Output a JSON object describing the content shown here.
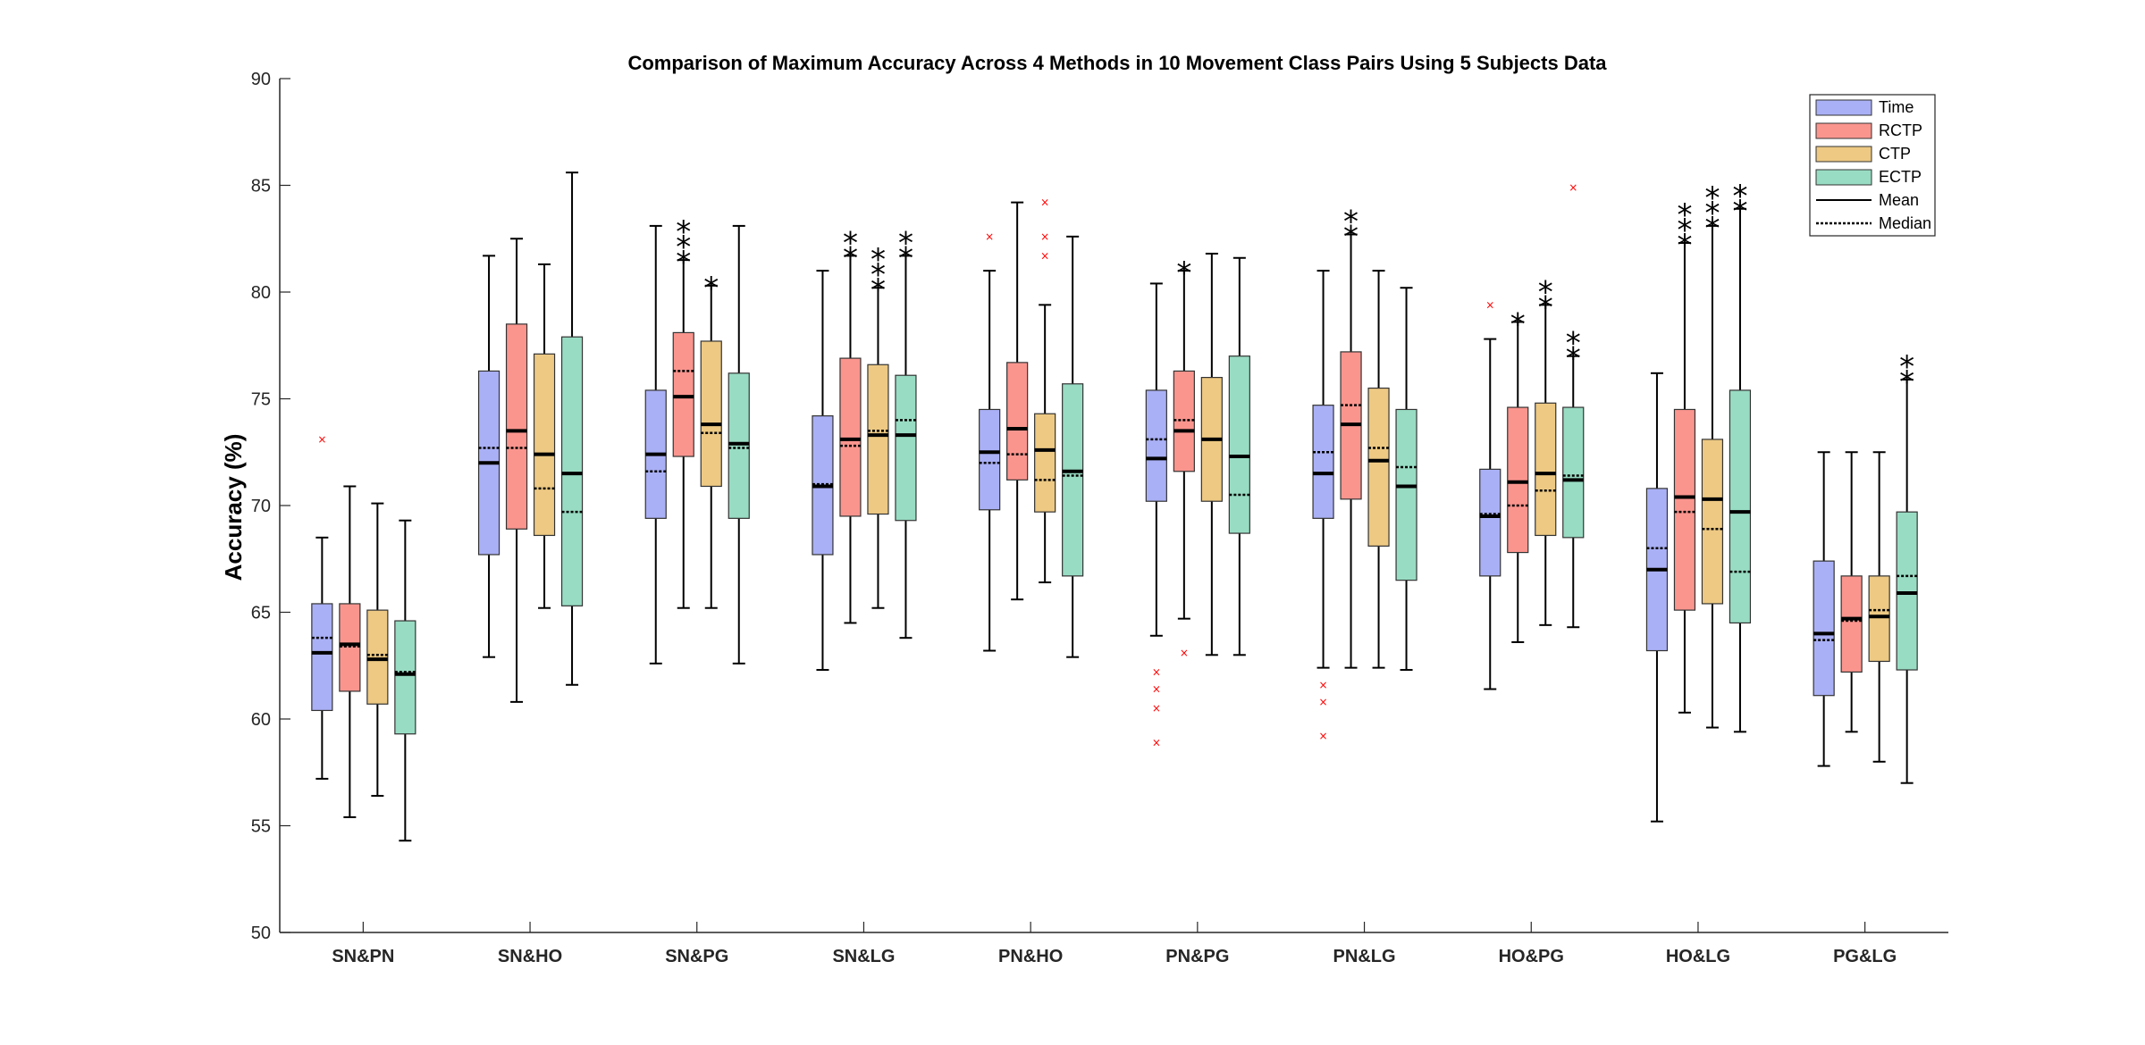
{
  "chart_data": {
    "type": "box",
    "title": "Comparison of Maximum Accuracy Across 4 Methods in 10 Movement Class Pairs Using 5 Subjects Data",
    "xlabel": "",
    "ylabel": "Accuracy (%)",
    "ylim": [
      50,
      90
    ],
    "yticks": [
      50,
      55,
      60,
      65,
      70,
      75,
      80,
      85,
      90
    ],
    "categories": [
      "SN&PN",
      "SN&HO",
      "SN&PG",
      "SN&LG",
      "PN&HO",
      "PN&PG",
      "PN&LG",
      "HO&PG",
      "HO&LG",
      "PG&LG"
    ],
    "legend": {
      "position": "top-right",
      "entries": [
        "Time",
        "RCTP",
        "CTP",
        "ECTP",
        "Mean",
        "Median"
      ]
    },
    "series": [
      {
        "name": "Time",
        "color": "#aab0f5",
        "boxes": [
          {
            "wlo": 57.2,
            "q1": 60.4,
            "median": 63.8,
            "mean": 63.1,
            "q3": 65.4,
            "whi": 68.5,
            "outliers": [
              73.1
            ],
            "stars": ""
          },
          {
            "wlo": 62.9,
            "q1": 67.7,
            "median": 72.7,
            "mean": 72.0,
            "q3": 76.3,
            "whi": 81.7,
            "outliers": [],
            "stars": ""
          },
          {
            "wlo": 62.6,
            "q1": 69.4,
            "median": 71.6,
            "mean": 72.4,
            "q3": 75.4,
            "whi": 83.1,
            "outliers": [],
            "stars": ""
          },
          {
            "wlo": 62.3,
            "q1": 67.7,
            "median": 71.0,
            "mean": 70.9,
            "q3": 74.2,
            "whi": 81.0,
            "outliers": [],
            "stars": ""
          },
          {
            "wlo": 63.2,
            "q1": 69.8,
            "median": 72.0,
            "mean": 72.5,
            "q3": 74.5,
            "whi": 81.0,
            "outliers": [
              82.6
            ],
            "stars": ""
          },
          {
            "wlo": 63.9,
            "q1": 70.2,
            "median": 73.1,
            "mean": 72.2,
            "q3": 75.4,
            "whi": 80.4,
            "outliers": [
              62.2,
              61.4,
              60.5,
              58.9
            ],
            "stars": ""
          },
          {
            "wlo": 62.4,
            "q1": 69.4,
            "median": 72.5,
            "mean": 71.5,
            "q3": 74.7,
            "whi": 81.0,
            "outliers": [
              61.6,
              60.8,
              59.2
            ],
            "stars": ""
          },
          {
            "wlo": 61.4,
            "q1": 66.7,
            "median": 69.6,
            "mean": 69.5,
            "q3": 71.7,
            "whi": 77.8,
            "outliers": [
              79.4
            ],
            "stars": ""
          },
          {
            "wlo": 55.2,
            "q1": 63.2,
            "median": 68.0,
            "mean": 67.0,
            "q3": 70.8,
            "whi": 76.2,
            "outliers": [],
            "stars": ""
          },
          {
            "wlo": 57.8,
            "q1": 61.1,
            "median": 63.7,
            "mean": 64.0,
            "q3": 67.4,
            "whi": 72.5,
            "outliers": [],
            "stars": ""
          }
        ]
      },
      {
        "name": "RCTP",
        "color": "#fa958e",
        "boxes": [
          {
            "wlo": 55.4,
            "q1": 61.3,
            "median": 63.4,
            "mean": 63.5,
            "q3": 65.4,
            "whi": 70.9,
            "outliers": [],
            "stars": ""
          },
          {
            "wlo": 60.8,
            "q1": 68.9,
            "median": 72.7,
            "mean": 73.5,
            "q3": 78.5,
            "whi": 82.5,
            "outliers": [],
            "stars": ""
          },
          {
            "wlo": 65.2,
            "q1": 72.3,
            "median": 76.3,
            "mean": 75.1,
            "q3": 78.1,
            "whi": 81.5,
            "outliers": [],
            "stars": "***"
          },
          {
            "wlo": 64.5,
            "q1": 69.5,
            "median": 72.8,
            "mean": 73.1,
            "q3": 76.9,
            "whi": 81.7,
            "outliers": [],
            "stars": "**"
          },
          {
            "wlo": 65.6,
            "q1": 71.2,
            "median": 72.4,
            "mean": 73.6,
            "q3": 76.7,
            "whi": 84.2,
            "outliers": [],
            "stars": ""
          },
          {
            "wlo": 64.7,
            "q1": 71.6,
            "median": 74.0,
            "mean": 73.5,
            "q3": 76.3,
            "whi": 81.0,
            "outliers": [
              63.1
            ],
            "stars": "*"
          },
          {
            "wlo": 62.4,
            "q1": 70.3,
            "median": 74.7,
            "mean": 73.8,
            "q3": 77.2,
            "whi": 82.7,
            "outliers": [],
            "stars": "**"
          },
          {
            "wlo": 63.6,
            "q1": 67.8,
            "median": 70.0,
            "mean": 71.1,
            "q3": 74.6,
            "whi": 78.6,
            "outliers": [],
            "stars": "*"
          },
          {
            "wlo": 60.3,
            "q1": 65.1,
            "median": 69.7,
            "mean": 70.4,
            "q3": 74.5,
            "whi": 82.3,
            "outliers": [],
            "stars": "***"
          },
          {
            "wlo": 59.4,
            "q1": 62.2,
            "median": 64.6,
            "mean": 64.7,
            "q3": 66.7,
            "whi": 72.5,
            "outliers": [],
            "stars": ""
          }
        ]
      },
      {
        "name": "CTP",
        "color": "#edc983",
        "boxes": [
          {
            "wlo": 56.4,
            "q1": 60.7,
            "median": 63.0,
            "mean": 62.8,
            "q3": 65.1,
            "whi": 70.1,
            "outliers": [],
            "stars": ""
          },
          {
            "wlo": 65.2,
            "q1": 68.6,
            "median": 70.8,
            "mean": 72.4,
            "q3": 77.1,
            "whi": 81.3,
            "outliers": [],
            "stars": ""
          },
          {
            "wlo": 65.2,
            "q1": 70.9,
            "median": 73.4,
            "mean": 73.8,
            "q3": 77.7,
            "whi": 80.3,
            "outliers": [],
            "stars": "*"
          },
          {
            "wlo": 65.2,
            "q1": 69.6,
            "median": 73.5,
            "mean": 73.3,
            "q3": 76.6,
            "whi": 80.2,
            "outliers": [],
            "stars": "***"
          },
          {
            "wlo": 66.4,
            "q1": 69.7,
            "median": 71.2,
            "mean": 72.6,
            "q3": 74.3,
            "whi": 79.4,
            "outliers": [
              81.7,
              82.6,
              84.2
            ],
            "stars": ""
          },
          {
            "wlo": 63.0,
            "q1": 70.2,
            "median": 73.1,
            "mean": 73.1,
            "q3": 76.0,
            "whi": 81.8,
            "outliers": [],
            "stars": ""
          },
          {
            "wlo": 62.4,
            "q1": 68.1,
            "median": 72.7,
            "mean": 72.1,
            "q3": 75.5,
            "whi": 81.0,
            "outliers": [],
            "stars": ""
          },
          {
            "wlo": 64.4,
            "q1": 68.6,
            "median": 70.7,
            "mean": 71.5,
            "q3": 74.8,
            "whi": 79.4,
            "outliers": [],
            "stars": "**"
          },
          {
            "wlo": 59.6,
            "q1": 65.4,
            "median": 68.9,
            "mean": 70.3,
            "q3": 73.1,
            "whi": 83.1,
            "outliers": [],
            "stars": "***"
          },
          {
            "wlo": 58.0,
            "q1": 62.7,
            "median": 65.1,
            "mean": 64.8,
            "q3": 66.7,
            "whi": 72.5,
            "outliers": [],
            "stars": ""
          }
        ]
      },
      {
        "name": "ECTP",
        "color": "#98dcc3",
        "boxes": [
          {
            "wlo": 54.3,
            "q1": 59.3,
            "median": 62.2,
            "mean": 62.1,
            "q3": 64.6,
            "whi": 69.3,
            "outliers": [],
            "stars": ""
          },
          {
            "wlo": 61.6,
            "q1": 65.3,
            "median": 69.7,
            "mean": 71.5,
            "q3": 77.9,
            "whi": 85.6,
            "outliers": [],
            "stars": ""
          },
          {
            "wlo": 62.6,
            "q1": 69.4,
            "median": 72.7,
            "mean": 72.9,
            "q3": 76.2,
            "whi": 83.1,
            "outliers": [],
            "stars": ""
          },
          {
            "wlo": 63.8,
            "q1": 69.3,
            "median": 74.0,
            "mean": 73.3,
            "q3": 76.1,
            "whi": 81.7,
            "outliers": [],
            "stars": "**"
          },
          {
            "wlo": 62.9,
            "q1": 66.7,
            "median": 71.4,
            "mean": 71.6,
            "q3": 75.7,
            "whi": 82.6,
            "outliers": [],
            "stars": ""
          },
          {
            "wlo": 63.0,
            "q1": 68.7,
            "median": 70.5,
            "mean": 72.3,
            "q3": 77.0,
            "whi": 81.6,
            "outliers": [],
            "stars": ""
          },
          {
            "wlo": 62.3,
            "q1": 66.5,
            "median": 71.8,
            "mean": 70.9,
            "q3": 74.5,
            "whi": 80.2,
            "outliers": [],
            "stars": ""
          },
          {
            "wlo": 64.3,
            "q1": 68.5,
            "median": 71.4,
            "mean": 71.2,
            "q3": 74.6,
            "whi": 77.0,
            "outliers": [
              84.9
            ],
            "stars": "**"
          },
          {
            "wlo": 59.4,
            "q1": 64.5,
            "median": 66.9,
            "mean": 69.7,
            "q3": 75.4,
            "whi": 83.9,
            "outliers": [],
            "stars": "**"
          },
          {
            "wlo": 57.0,
            "q1": 62.3,
            "median": 66.7,
            "mean": 65.9,
            "q3": 69.7,
            "whi": 75.9,
            "outliers": [],
            "stars": "**"
          }
        ]
      }
    ]
  }
}
